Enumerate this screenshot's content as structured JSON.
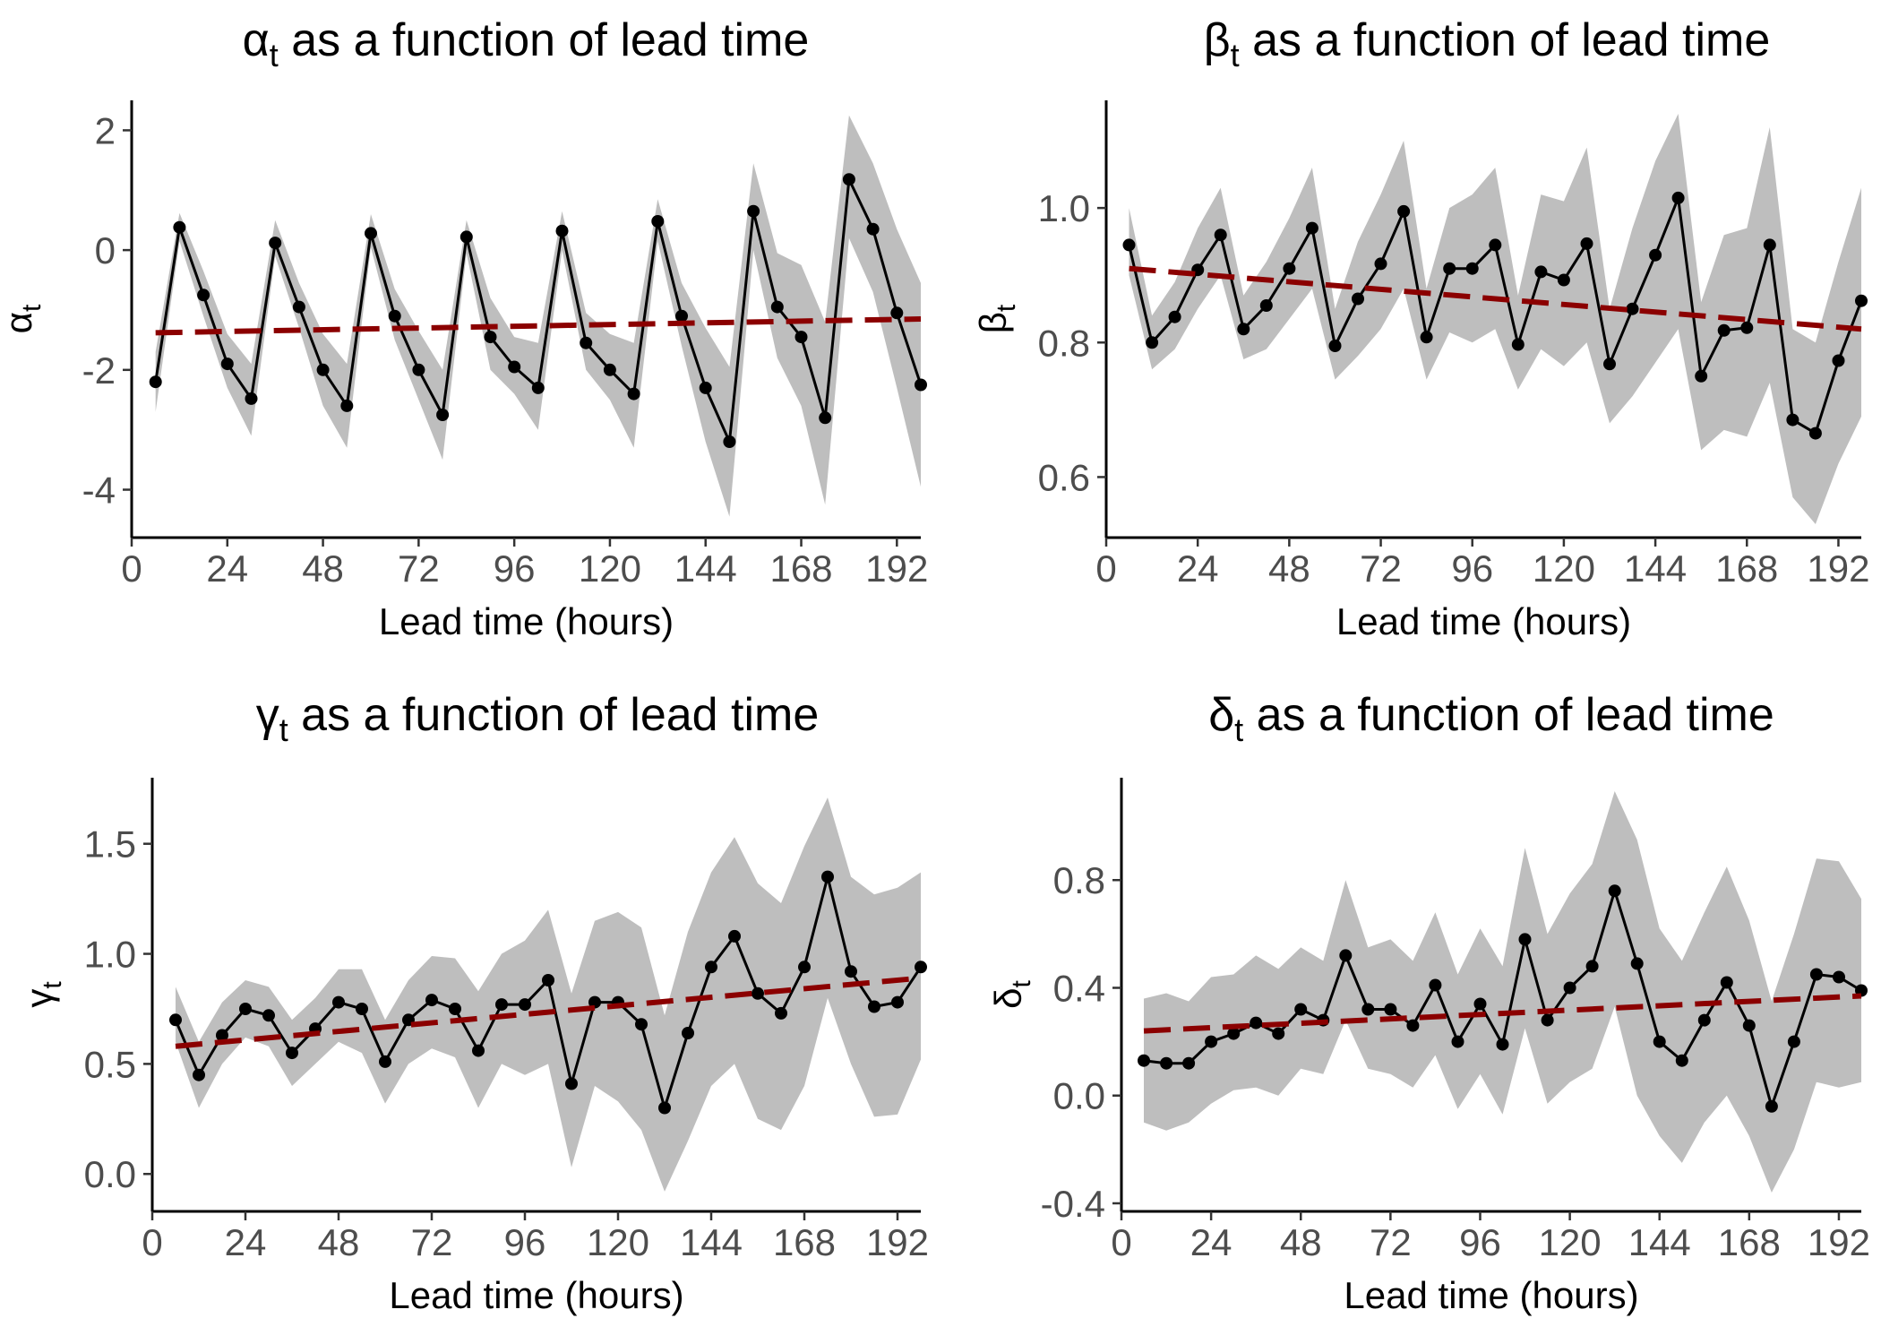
{
  "chart_data": [
    {
      "type": "line",
      "title_symbol": "α",
      "title_sub": "t",
      "title_rest": " as a function of lead time",
      "ylabel_symbol": "α",
      "ylabel_sub": "t",
      "xlabel": "Lead time (hours)",
      "xlim": [
        0,
        198
      ],
      "ylim": [
        -4.8,
        2.5
      ],
      "xticks": [
        0,
        24,
        48,
        72,
        96,
        120,
        144,
        168,
        192
      ],
      "yticks": [
        -4,
        -2,
        0,
        2
      ],
      "ytick_labels": [
        "-4",
        "-2",
        "0",
        "2"
      ],
      "grid": false,
      "colors": {
        "line": "#000000",
        "band": "#bebebe",
        "trend": "#8b0000"
      },
      "series": [
        {
          "x": [
            6,
            12,
            18,
            24,
            30,
            36,
            42,
            48,
            54,
            60,
            66,
            72,
            78,
            84,
            90,
            96,
            102,
            108,
            114,
            120,
            126,
            132,
            138,
            144,
            150,
            156,
            162,
            168,
            174,
            180,
            186,
            192,
            198
          ],
          "values": [
            -2.2,
            0.38,
            -0.75,
            -1.9,
            -2.48,
            0.12,
            -0.95,
            -2.0,
            -2.6,
            0.28,
            -1.1,
            -2.0,
            -2.75,
            0.22,
            -1.45,
            -1.95,
            -2.3,
            0.32,
            -1.55,
            -2.0,
            -2.4,
            0.48,
            -1.1,
            -2.3,
            -3.2,
            0.65,
            -0.95,
            -1.45,
            -2.8,
            1.18,
            0.35,
            -1.05,
            -2.25
          ],
          "lower": [
            -2.7,
            0.15,
            -1.1,
            -2.3,
            -3.1,
            -0.1,
            -1.3,
            -2.6,
            -3.3,
            0.05,
            -1.5,
            -2.5,
            -3.5,
            -0.05,
            -2.0,
            -2.4,
            -3.0,
            0.0,
            -2.0,
            -2.5,
            -3.3,
            0.15,
            -1.6,
            -3.2,
            -4.45,
            0.0,
            -1.8,
            -2.6,
            -4.25,
            0.2,
            -0.7,
            -2.3,
            -3.95
          ],
          "upper": [
            -1.7,
            0.62,
            -0.35,
            -1.4,
            -1.9,
            0.5,
            -0.55,
            -1.4,
            -1.9,
            0.6,
            -0.65,
            -1.35,
            -2.0,
            0.5,
            -0.8,
            -1.45,
            -1.55,
            0.65,
            -1.05,
            -1.4,
            -1.55,
            0.85,
            -0.55,
            -1.3,
            -1.95,
            1.45,
            -0.05,
            -0.25,
            -1.2,
            2.25,
            1.45,
            0.35,
            -0.55
          ]
        }
      ],
      "trend": {
        "x": [
          6,
          198
        ],
        "values": [
          -1.38,
          -1.15
        ]
      }
    },
    {
      "type": "line",
      "title_symbol": "β",
      "title_sub": "t",
      "title_rest": " as a function of lead time",
      "ylabel_symbol": "β",
      "ylabel_sub": "t",
      "xlabel": "Lead time (hours)",
      "xlim": [
        0,
        198
      ],
      "ylim": [
        0.51,
        1.16
      ],
      "xticks": [
        0,
        24,
        48,
        72,
        96,
        120,
        144,
        168,
        192
      ],
      "yticks": [
        0.6,
        0.8,
        1.0
      ],
      "ytick_labels": [
        "0.6",
        "0.8",
        "1.0"
      ],
      "grid": false,
      "colors": {
        "line": "#000000",
        "band": "#bebebe",
        "trend": "#8b0000"
      },
      "series": [
        {
          "x": [
            6,
            12,
            18,
            24,
            30,
            36,
            42,
            48,
            54,
            60,
            66,
            72,
            78,
            84,
            90,
            96,
            102,
            108,
            114,
            120,
            126,
            132,
            138,
            144,
            150,
            156,
            162,
            168,
            174,
            180,
            186,
            192,
            198
          ],
          "values": [
            0.945,
            0.8,
            0.838,
            0.908,
            0.96,
            0.82,
            0.855,
            0.91,
            0.97,
            0.795,
            0.865,
            0.917,
            0.995,
            0.808,
            0.91,
            0.91,
            0.945,
            0.797,
            0.905,
            0.893,
            0.947,
            0.768,
            0.85,
            0.93,
            1.015,
            0.75,
            0.818,
            0.822,
            0.945,
            0.685,
            0.665,
            0.773,
            0.862
          ],
          "lower": [
            0.9,
            0.76,
            0.79,
            0.85,
            0.9,
            0.775,
            0.79,
            0.835,
            0.88,
            0.745,
            0.78,
            0.82,
            0.88,
            0.745,
            0.815,
            0.8,
            0.82,
            0.73,
            0.79,
            0.765,
            0.8,
            0.68,
            0.72,
            0.77,
            0.82,
            0.64,
            0.67,
            0.66,
            0.74,
            0.57,
            0.53,
            0.62,
            0.69
          ],
          "upper": [
            1.0,
            0.84,
            0.89,
            0.97,
            1.03,
            0.87,
            0.92,
            0.985,
            1.06,
            0.85,
            0.95,
            1.02,
            1.1,
            0.88,
            1.0,
            1.02,
            1.06,
            0.87,
            1.02,
            1.01,
            1.09,
            0.85,
            0.97,
            1.07,
            1.14,
            0.86,
            0.96,
            0.97,
            1.12,
            0.82,
            0.8,
            0.92,
            1.03
          ]
        }
      ],
      "trend": {
        "x": [
          6,
          198
        ],
        "values": [
          0.91,
          0.82
        ]
      }
    },
    {
      "type": "line",
      "title_symbol": "γ",
      "title_sub": "t",
      "title_rest": " as a function of lead time",
      "ylabel_symbol": "γ",
      "ylabel_sub": "t",
      "xlabel": "Lead time (hours)",
      "xlim": [
        0,
        198
      ],
      "ylim": [
        -0.17,
        1.8
      ],
      "xticks": [
        0,
        24,
        48,
        72,
        96,
        120,
        144,
        168,
        192
      ],
      "yticks": [
        0.0,
        0.5,
        1.0,
        1.5
      ],
      "ytick_labels": [
        "0.0",
        "0.5",
        "1.0",
        "1.5"
      ],
      "grid": false,
      "colors": {
        "line": "#000000",
        "band": "#bebebe",
        "trend": "#8b0000"
      },
      "series": [
        {
          "x": [
            6,
            12,
            18,
            24,
            30,
            36,
            42,
            48,
            54,
            60,
            66,
            72,
            78,
            84,
            90,
            96,
            102,
            108,
            114,
            120,
            126,
            132,
            138,
            144,
            150,
            156,
            162,
            168,
            174,
            180,
            186,
            192,
            198
          ],
          "values": [
            0.7,
            0.45,
            0.63,
            0.75,
            0.72,
            0.55,
            0.66,
            0.78,
            0.75,
            0.51,
            0.7,
            0.79,
            0.75,
            0.56,
            0.77,
            0.77,
            0.88,
            0.41,
            0.78,
            0.78,
            0.68,
            0.3,
            0.64,
            0.94,
            1.08,
            0.82,
            0.73,
            0.94,
            1.35,
            0.92,
            0.76,
            0.78,
            0.94
          ],
          "lower": [
            0.6,
            0.3,
            0.5,
            0.62,
            0.58,
            0.4,
            0.5,
            0.6,
            0.55,
            0.32,
            0.5,
            0.57,
            0.53,
            0.3,
            0.5,
            0.45,
            0.5,
            0.03,
            0.4,
            0.33,
            0.2,
            -0.08,
            0.15,
            0.4,
            0.5,
            0.25,
            0.2,
            0.4,
            0.8,
            0.5,
            0.26,
            0.27,
            0.52
          ],
          "upper": [
            0.85,
            0.6,
            0.78,
            0.88,
            0.85,
            0.7,
            0.8,
            0.93,
            0.93,
            0.7,
            0.88,
            0.99,
            0.98,
            0.83,
            1.0,
            1.06,
            1.2,
            0.82,
            1.15,
            1.19,
            1.12,
            0.72,
            1.1,
            1.37,
            1.53,
            1.32,
            1.23,
            1.49,
            1.71,
            1.35,
            1.27,
            1.3,
            1.37
          ]
        }
      ],
      "trend": {
        "x": [
          6,
          198
        ],
        "values": [
          0.58,
          0.89
        ]
      }
    },
    {
      "type": "line",
      "title_symbol": "δ",
      "title_sub": "t",
      "title_rest": " as a function of lead time",
      "ylabel_symbol": "δ",
      "ylabel_sub": "t",
      "xlabel": "Lead time (hours)",
      "xlim": [
        0,
        198
      ],
      "ylim": [
        -0.43,
        1.18
      ],
      "xticks": [
        0,
        24,
        48,
        72,
        96,
        120,
        144,
        168,
        192
      ],
      "yticks": [
        -0.4,
        0.0,
        0.4,
        0.8
      ],
      "ytick_labels": [
        "-0.4",
        "0.0",
        "0.4",
        "0.8"
      ],
      "grid": false,
      "colors": {
        "line": "#000000",
        "band": "#bebebe",
        "trend": "#8b0000"
      },
      "series": [
        {
          "x": [
            6,
            12,
            18,
            24,
            30,
            36,
            42,
            48,
            54,
            60,
            66,
            72,
            78,
            84,
            90,
            96,
            102,
            108,
            114,
            120,
            126,
            132,
            138,
            144,
            150,
            156,
            162,
            168,
            174,
            180,
            186,
            192,
            198
          ],
          "values": [
            0.13,
            0.12,
            0.12,
            0.2,
            0.23,
            0.27,
            0.23,
            0.32,
            0.28,
            0.52,
            0.32,
            0.32,
            0.26,
            0.41,
            0.2,
            0.34,
            0.19,
            0.58,
            0.28,
            0.4,
            0.48,
            0.76,
            0.49,
            0.2,
            0.13,
            0.28,
            0.42,
            0.26,
            -0.04,
            0.2,
            0.45,
            0.44,
            0.39
          ],
          "lower": [
            -0.1,
            -0.13,
            -0.1,
            -0.03,
            0.02,
            0.03,
            0.0,
            0.1,
            0.08,
            0.28,
            0.1,
            0.08,
            0.03,
            0.15,
            -0.05,
            0.08,
            -0.07,
            0.25,
            -0.03,
            0.05,
            0.1,
            0.33,
            0.0,
            -0.15,
            -0.25,
            -0.1,
            0.0,
            -0.15,
            -0.36,
            -0.2,
            0.05,
            0.03,
            0.05
          ],
          "upper": [
            0.36,
            0.38,
            0.35,
            0.44,
            0.45,
            0.52,
            0.47,
            0.55,
            0.5,
            0.8,
            0.55,
            0.58,
            0.5,
            0.68,
            0.45,
            0.62,
            0.48,
            0.92,
            0.6,
            0.75,
            0.86,
            1.13,
            0.95,
            0.62,
            0.5,
            0.68,
            0.85,
            0.65,
            0.35,
            0.6,
            0.88,
            0.87,
            0.73
          ]
        }
      ],
      "trend": {
        "x": [
          6,
          198
        ],
        "values": [
          0.24,
          0.37
        ]
      }
    }
  ]
}
